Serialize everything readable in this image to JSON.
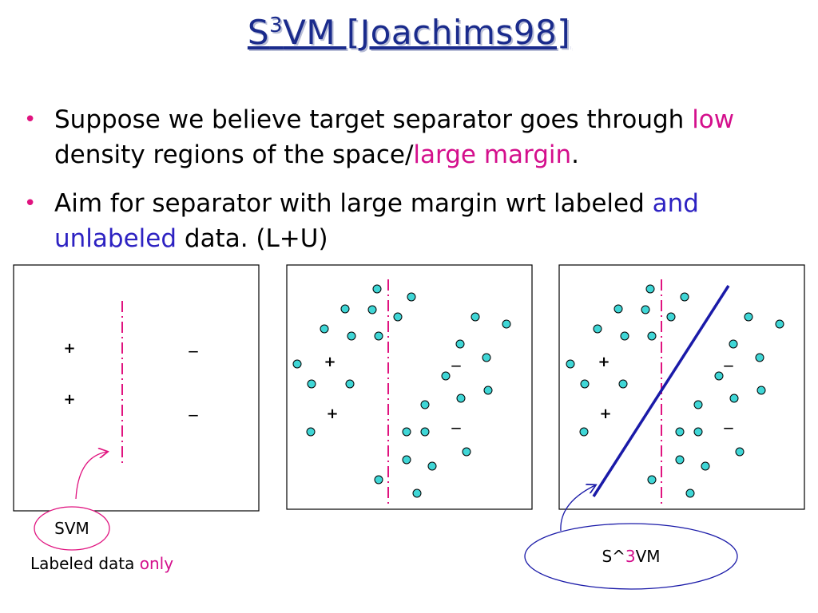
{
  "title": {
    "main": "S",
    "sup": "3",
    "rest": "VM [Joachims98]"
  },
  "bullets": [
    {
      "parts": [
        {
          "text": "Suppose we believe target separator goes through ",
          "tone": "plain"
        },
        {
          "text": "low",
          "tone": "pink"
        },
        {
          "text": " density regions of the space/",
          "tone": "plain"
        },
        {
          "text": "large margin",
          "tone": "pink"
        },
        {
          "text": ".",
          "tone": "plain"
        }
      ]
    },
    {
      "parts": [
        {
          "text": "Aim for separator with large margin wrt labeled ",
          "tone": "plain"
        },
        {
          "text": "and unlabeled",
          "tone": "blue"
        },
        {
          "text": " data. (L+U)",
          "tone": "plain"
        }
      ]
    }
  ],
  "bullet_marker": "•",
  "figure_symbols": {
    "positive": "+",
    "negative": "_"
  },
  "captions": {
    "svm_label": "SVM",
    "labeled_prefix": "Labeled data ",
    "labeled_emph": "only",
    "s3vm_prefix": "S^",
    "s3vm_num": "3",
    "s3vm_suffix": "VM"
  },
  "colors": {
    "title": "#1a2b8c",
    "bullet_marker": "#e0137f",
    "emphasis_pink": "#d40f8c",
    "emphasis_blue": "#2d22c2",
    "svm_separator": "#e0137f",
    "s3vm_separator": "#1a1aa8",
    "unlabeled_point_fill": "#3fd6d6",
    "svm_callout": "#e0137f",
    "s3vm_callout": "#1a1aa8"
  }
}
